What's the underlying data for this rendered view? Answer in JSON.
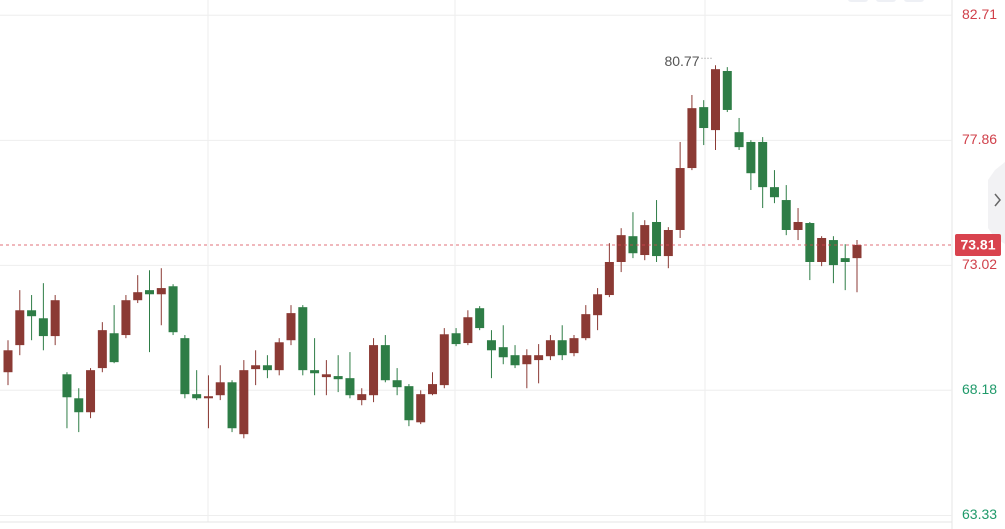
{
  "chart_data": {
    "type": "candlestick",
    "ylim": [
      63.0,
      83.3
    ],
    "yticks": [
      82.71,
      77.86,
      73.02,
      68.18,
      63.33
    ],
    "ytick_colors": [
      "#d0404a",
      "#d0404a",
      "#d0404a",
      "#1f9a6a",
      "#1f9a6a"
    ],
    "grid": true,
    "up_color": "#8b3a34",
    "down_color": "#2e7d46",
    "last_price": 73.81,
    "last_price_color": "#d9434e",
    "max_label": 80.77,
    "open": [
      68.88,
      69.93,
      71.28,
      70.97,
      70.28,
      68.8,
      67.87,
      67.33,
      69.04,
      70.39,
      70.32,
      71.67,
      72.06,
      71.9,
      72.21,
      70.2,
      68.03,
      67.87,
      67.99,
      68.49,
      66.48,
      69.0,
      69.15,
      68.96,
      70.12,
      71.4,
      68.96,
      68.69,
      68.73,
      68.65,
      67.8,
      67.99,
      69.93,
      68.57,
      68.34,
      66.94,
      68.03,
      68.38,
      70.39,
      70.01,
      71.36,
      70.12,
      69.85,
      69.54,
      69.19,
      69.35,
      69.5,
      70.12,
      69.62,
      70.2,
      71.09,
      71.87,
      73.15,
      74.15,
      73.42,
      74.7,
      73.38,
      74.39,
      76.79,
      79.15,
      78.26,
      80.55,
      78.18,
      77.8,
      77.8,
      76.05,
      75.55,
      74.39,
      74.66,
      73.15,
      74.0,
      73.3,
      73.3
    ],
    "high": [
      70.12,
      72.06,
      71.87,
      72.33,
      71.87,
      68.88,
      68.26,
      69.04,
      70.82,
      71.48,
      71.87,
      72.64,
      72.83,
      72.91,
      72.29,
      70.32,
      68.96,
      68.76,
      69.15,
      68.57,
      69.35,
      69.73,
      69.54,
      70.2,
      71.48,
      71.48,
      70.2,
      69.35,
      69.54,
      69.66,
      68.26,
      70.2,
      70.32,
      69.04,
      68.42,
      68.18,
      68.88,
      70.59,
      70.59,
      71.28,
      71.44,
      70.51,
      70.7,
      69.93,
      69.77,
      69.97,
      70.32,
      70.7,
      70.32,
      71.48,
      72.14,
      73.88,
      74.46,
      75.08,
      74.77,
      75.55,
      74.5,
      77.8,
      79.62,
      79.42,
      80.77,
      80.7,
      78.73,
      77.87,
      77.99,
      76.71,
      76.13,
      75.24,
      74.7,
      74.15,
      74.15,
      73.84,
      74.0
    ],
    "low": [
      68.38,
      69.54,
      70.12,
      69.73,
      69.93,
      66.71,
      66.56,
      67.1,
      68.88,
      69.23,
      70.2,
      71.56,
      69.66,
      70.7,
      70.32,
      67.87,
      67.8,
      66.71,
      67.8,
      66.56,
      66.32,
      68.38,
      68.65,
      68.76,
      69.93,
      68.76,
      67.99,
      67.99,
      68.11,
      67.87,
      67.6,
      67.72,
      68.49,
      67.99,
      66.79,
      66.87,
      67.99,
      68.26,
      69.89,
      69.93,
      70.51,
      68.65,
      69.19,
      69.04,
      68.26,
      68.45,
      69.35,
      69.35,
      69.5,
      70.12,
      70.51,
      71.79,
      72.76,
      73.3,
      73.22,
      73.15,
      72.91,
      74.08,
      76.71,
      77.68,
      77.49,
      78.96,
      77.49,
      75.94,
      75.24,
      75.43,
      74.19,
      74.0,
      72.45,
      72.99,
      72.33,
      72.06,
      71.98
    ],
    "close": [
      69.73,
      71.28,
      71.05,
      70.28,
      71.67,
      67.91,
      67.33,
      68.96,
      70.51,
      69.27,
      71.67,
      71.98,
      71.9,
      72.14,
      70.43,
      68.03,
      67.87,
      67.95,
      68.49,
      66.71,
      68.96,
      69.15,
      68.96,
      70.04,
      71.17,
      68.96,
      68.84,
      68.8,
      68.61,
      67.99,
      68.03,
      69.93,
      68.57,
      68.3,
      67.02,
      68.03,
      68.42,
      70.35,
      69.97,
      71.01,
      70.59,
      69.73,
      69.46,
      69.15,
      69.54,
      69.54,
      70.12,
      69.54,
      70.2,
      71.13,
      71.9,
      73.15,
      74.19,
      73.49,
      74.58,
      73.38,
      74.39,
      76.79,
      79.11,
      78.34,
      80.62,
      79.04,
      77.6,
      76.59,
      76.05,
      75.66,
      74.39,
      74.7,
      73.15,
      74.08,
      73.03,
      73.15,
      73.81
    ]
  }
}
